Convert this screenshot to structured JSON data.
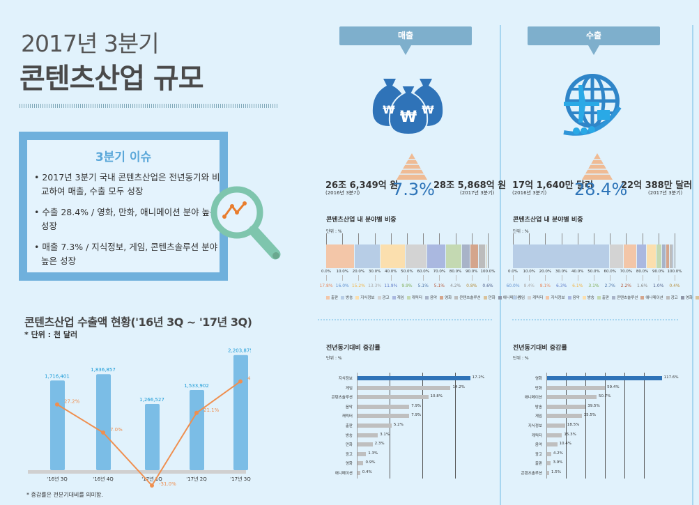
{
  "header": {
    "title_line1": "2017년 3분기",
    "title_line2": "콘텐츠산업 규모"
  },
  "issue_box": {
    "title": "3분기 이슈",
    "items": [
      "2017년 3분기 국내 콘텐츠산업은 전년동기와 비교하여 매출, 수출 모두 성장",
      "수출 28.4% / 영화, 만화, 애니메이션 분야 높은 성장",
      "매출 7.3% / 지식정보, 게임, 콘텐츠솔루션 분야 높은 성장"
    ]
  },
  "export_trend": {
    "title": "콘텐츠산업 수출액 현황('16년 3Q ~ '17년 3Q)",
    "unit": "* 단위 : 천 달러",
    "note": "* 증감률은 전분기대비를 의미함."
  },
  "sales_panel": {
    "tag": "매출",
    "prev_amount": "26조 6,349억 원",
    "prev_period": "(2016년 3분기)",
    "growth": "7.3%",
    "curr_amount": "28조 5,868억 원",
    "curr_period": "(2017년 3분기)",
    "share_title": "콘텐츠산업 내 분야별 비중",
    "share_unit": "단위 : %",
    "growth_title": "전년동기대비 증감률",
    "growth_unit": "단위 : %"
  },
  "export_panel": {
    "tag": "수출",
    "prev_amount": "17억 1,640만 달러",
    "prev_period": "(2016년 3분기)",
    "growth": "28.4%",
    "curr_amount": "22억 388만 달러",
    "curr_period": "(2017년 3분기)",
    "share_title": "콘텐츠산업 내 분야별 비중",
    "share_unit": "단위 : %",
    "growth_title": "전년동기대비 증감률",
    "growth_unit": "단위 : %"
  },
  "colors": {
    "background": "#e1f2fc",
    "bar_blue": "#7bbde6",
    "line_orange": "#ef8f4f",
    "value_blue": "#1a9ad6",
    "highlight_bar": "#2f73b8",
    "grey_bar": "#bfbfbf",
    "accent_pct": "#2d74b8"
  },
  "chart_data": [
    {
      "id": "export_trend",
      "type": "bar+line",
      "title": "콘텐츠산업 수출액 현황('16년 3Q ~ '17년 3Q)",
      "ylabel": "천 달러",
      "categories": [
        "'16년 3Q",
        "'16년 4Q",
        "'17년 1Q",
        "'17년 2Q",
        "'17년 3Q"
      ],
      "series": [
        {
          "name": "수출액",
          "type": "bar",
          "values": [
            1716401,
            1836857,
            1266527,
            1533902,
            2203875
          ],
          "labels": [
            "1,716,401",
            "1,836,857",
            "1,266,527",
            "1,533,902",
            "2,203,875"
          ]
        },
        {
          "name": "전분기대비 증감률",
          "type": "line",
          "values": [
            27.2,
            7.0,
            -31.0,
            21.1,
            43.7
          ],
          "labels": [
            "27.2%",
            "7.0%",
            "-31.0%",
            "21.1%",
            "43.7%"
          ]
        }
      ],
      "grid": false
    },
    {
      "id": "sales_share",
      "type": "stacked-bar",
      "title": "콘텐츠산업 내 분야별 비중 (매출)",
      "unit": "%",
      "xticks": [
        "0.0%",
        "10.0%",
        "20.0%",
        "30.0%",
        "40.0%",
        "50.0%",
        "60.0%",
        "70.0%",
        "80.0%",
        "90.0%",
        "100.0%"
      ],
      "categories": [
        "출판",
        "방송",
        "지식정보",
        "광고",
        "게임",
        "캐릭터",
        "음악",
        "영화",
        "콘텐츠솔루션",
        "만화",
        "애니메이션"
      ],
      "values": [
        17.8,
        16.0,
        15.2,
        13.3,
        11.9,
        9.9,
        5.1,
        5.1,
        4.2,
        0.8,
        0.6
      ],
      "labels": [
        "17.8%",
        "16.0%",
        "15.2%",
        "13.3%",
        "11.9%",
        "9.9%",
        "5.1%",
        "5.1%",
        "4.2%",
        "0.8%",
        "0.6%"
      ],
      "colors": [
        "#f3c6a8",
        "#b7cde6",
        "#fbdfae",
        "#d3d3d3",
        "#aab8e0",
        "#c4d9b2",
        "#a8b3c8",
        "#d4a58c",
        "#bcbcbc",
        "#d9c29a",
        "#8f96a8"
      ],
      "label_colors": [
        "#e8875a",
        "#5f8fcf",
        "#f1b444",
        "#a9a9a9",
        "#5c79c7",
        "#7fad55",
        "#4b72a6",
        "#b4583a",
        "#888888",
        "#b38b3a",
        "#4e5f8a"
      ],
      "legend_position": "bottom"
    },
    {
      "id": "export_share",
      "type": "stacked-bar",
      "title": "콘텐츠산업 내 분야별 비중 (수출)",
      "unit": "%",
      "xticks": [
        "0.0%",
        "10.0%",
        "20.0%",
        "30.0%",
        "40.0%",
        "50.0%",
        "60.0%",
        "70.0%",
        "80.0%",
        "90.0%",
        "100.0%"
      ],
      "categories": [
        "게임",
        "캐릭터",
        "지식정보",
        "음악",
        "방송",
        "출판",
        "콘텐츠솔루션",
        "애니메이션",
        "광고",
        "영화",
        "만화"
      ],
      "values": [
        60.0,
        8.4,
        8.1,
        6.3,
        6.1,
        3.1,
        2.7,
        2.2,
        1.6,
        1.0,
        0.4
      ],
      "labels": [
        "60.0%",
        "8.4%",
        "8.1%",
        "6.3%",
        "6.1%",
        "3.1%",
        "2.7%",
        "2.2%",
        "1.6%",
        "1.0%",
        "0.4%"
      ],
      "colors": [
        "#b7cde6",
        "#d3d3d3",
        "#f3c6a8",
        "#aab8e0",
        "#fbdfae",
        "#c4d9b2",
        "#a8b3c8",
        "#d4a58c",
        "#bcbcbc",
        "#8f96a8",
        "#d9c29a"
      ],
      "label_colors": [
        "#5f8fcf",
        "#a9a9a9",
        "#e8875a",
        "#5c79c7",
        "#f1b444",
        "#7fad55",
        "#4b72a6",
        "#b4583a",
        "#888888",
        "#4e5f8a",
        "#b38b3a"
      ],
      "legend_position": "bottom"
    },
    {
      "id": "sales_yoy",
      "type": "bar",
      "orientation": "horizontal",
      "title": "전년동기대비 증감률 (매출)",
      "unit": "%",
      "categories": [
        "지식정보",
        "게임",
        "콘텐츠솔루션",
        "음악",
        "캐릭터",
        "출판",
        "방송",
        "만화",
        "광고",
        "영화",
        "애니메이션"
      ],
      "values": [
        17.2,
        14.2,
        10.8,
        7.9,
        7.9,
        5.2,
        3.1,
        2.3,
        1.3,
        0.9,
        0.4
      ],
      "labels": [
        "17.2%",
        "14.2%",
        "10.8%",
        "7.9%",
        "7.9%",
        "5.2%",
        "3.1%",
        "2.3%",
        "1.3%",
        "0.9%",
        "0.4%"
      ],
      "gridlines": [
        5,
        10,
        15
      ]
    },
    {
      "id": "export_yoy",
      "type": "bar",
      "orientation": "horizontal",
      "title": "전년동기대비 증감률 (수출)",
      "unit": "%",
      "categories": [
        "영화",
        "만화",
        "애니메이션",
        "방송",
        "게임",
        "지식정보",
        "캐릭터",
        "음악",
        "광고",
        "출판",
        "콘텐츠솔루션"
      ],
      "values": [
        117.6,
        59.4,
        50.7,
        39.5,
        35.5,
        18.5,
        15.3,
        10.4,
        4.2,
        3.9,
        1.5
      ],
      "labels": [
        "117.6%",
        "59.4%",
        "50.7%",
        "39.5%",
        "35.5%",
        "18.5%",
        "15.3%",
        "10.4%",
        "4.2%",
        "3.9%",
        "1.5%"
      ],
      "gridlines": [
        20,
        40,
        60,
        80,
        100
      ]
    }
  ]
}
